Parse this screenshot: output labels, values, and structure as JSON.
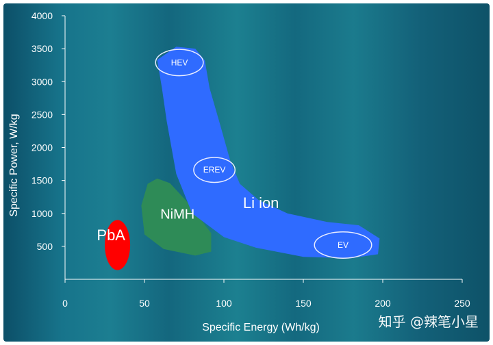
{
  "chart_data": {
    "type": "scatter",
    "xlabel": "Specific Energy (Wh/kg)",
    "ylabel": "Specific Power, W/kg",
    "xlim": [
      0,
      250
    ],
    "ylim": [
      0,
      4000
    ],
    "xticks": [
      0,
      50,
      100,
      150,
      200,
      250
    ],
    "yticks": [
      500,
      1000,
      1500,
      2000,
      2500,
      3000,
      3500,
      4000
    ],
    "grid": false,
    "legend": "none",
    "regions": [
      {
        "name": "PbA",
        "color": "#ff0000",
        "shape": "ellipse",
        "center": [
          33,
          520
        ],
        "radius": [
          8,
          380
        ]
      },
      {
        "name": "NiMH",
        "color": "#2e8b57",
        "shape": "polygon",
        "points": [
          [
            48,
            1120
          ],
          [
            52,
            1450
          ],
          [
            58,
            1530
          ],
          [
            66,
            1460
          ],
          [
            76,
            1200
          ],
          [
            84,
            960
          ],
          [
            92,
            700
          ],
          [
            92,
            420
          ],
          [
            82,
            360
          ],
          [
            62,
            460
          ],
          [
            50,
            680
          ]
        ]
      },
      {
        "name": "Li ion",
        "color": "#2f6bff",
        "shape": "polygon",
        "points": [
          [
            58,
            3330
          ],
          [
            70,
            3530
          ],
          [
            82,
            3500
          ],
          [
            88,
            3320
          ],
          [
            91,
            2900
          ],
          [
            97,
            2400
          ],
          [
            104,
            1800
          ],
          [
            110,
            1450
          ],
          [
            122,
            1200
          ],
          [
            140,
            1000
          ],
          [
            165,
            870
          ],
          [
            185,
            820
          ],
          [
            198,
            620
          ],
          [
            197,
            380
          ],
          [
            180,
            320
          ],
          [
            150,
            340
          ],
          [
            120,
            480
          ],
          [
            100,
            640
          ],
          [
            80,
            1000
          ],
          [
            70,
            1600
          ],
          [
            64,
            2400
          ],
          [
            61,
            2900
          ]
        ]
      }
    ],
    "annotations": [
      {
        "label": "HEV",
        "center": [
          72,
          3290
        ],
        "radius": [
          15,
          200
        ]
      },
      {
        "label": "EREV",
        "center": [
          94,
          1660
        ],
        "radius": [
          13,
          190
        ]
      },
      {
        "label": "EV",
        "center": [
          175,
          520
        ],
        "radius": [
          18,
          200
        ]
      }
    ],
    "region_label_positions": {
      "PbA": [
        20,
        590
      ],
      "NiMH": [
        60,
        920
      ],
      "Li ion": [
        112,
        1080
      ]
    }
  },
  "watermark": "知乎 @辣笔小星"
}
